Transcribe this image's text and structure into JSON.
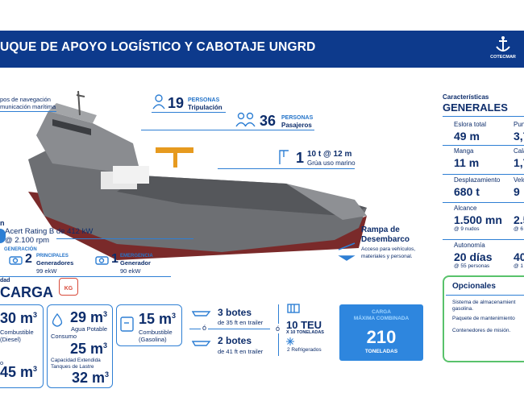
{
  "header": {
    "title": "UQUE DE APOYO LOGÍSTICO Y CABOTAJE UNGRD",
    "logo_text": "COTECMAR"
  },
  "callouts": {
    "navigation": [
      "pos de navegación",
      "municación marítima"
    ],
    "crew": {
      "number": "19",
      "unit": "PERSONAS",
      "label": "Tripulación"
    },
    "passengers": {
      "number": "36",
      "unit": "PERSONAS",
      "label": "Pasajeros"
    },
    "crane": {
      "value": "10 t @ 12 m",
      "number": "1",
      "label": "Grúa uso marino"
    },
    "ramp": {
      "title1": "Rampa de",
      "title2": "Desembarco",
      "desc1": "Acceso para vehículos,",
      "desc2": "materiales y personal."
    },
    "engine": {
      "line1": "Acert Rating B de 412 kW",
      "line2": "@ 2.100 rpm",
      "prefix": "n"
    },
    "generation": {
      "tag": "GENERACIÓN",
      "main_number": "2",
      "main_unit": "PRINCIPALES",
      "main_label": "Generadores",
      "main_power": "99 ekW",
      "emerg_number": "1",
      "emerg_unit": "EMERGENCIA",
      "emerg_label": "Generador",
      "emerg_power": "90 ekW"
    }
  },
  "cargo": {
    "capacity_word": "dad",
    "title": "CARGA",
    "kg_badge": "KG",
    "diesel": {
      "value": "30 m",
      "sup": "3",
      "label1": "Combustible",
      "label2": "(Diesel)"
    },
    "ballast_left": {
      "value": "45 m",
      "sup": "3",
      "prefix": "o"
    },
    "water": {
      "value": "29 m",
      "sup": "3",
      "label1": "Agua Potable",
      "label2": "Consumo"
    },
    "extended": {
      "value": "25 m",
      "sup": "3",
      "label1": "Capacidad Extendida",
      "label2": "Tanques de Lastre"
    },
    "ballast": {
      "value": "32 m",
      "sup": "3"
    },
    "gasoline": {
      "value": "15 m",
      "sup": "3",
      "label1": "Combustible",
      "label2": "(Gasolina)"
    },
    "or1": "ó",
    "boats1": {
      "title": "3 botes",
      "desc": "de 35 ft en trailer"
    },
    "boats2": {
      "title": "2 botes",
      "desc": "de 41 ft en trailer"
    },
    "or2": "ó",
    "teu": {
      "title": "10 TEU",
      "desc": "X 10 TONELADAS",
      "reefer": "2 Refrigerados"
    },
    "max": {
      "label1": "CARGA",
      "label2": "MÁXIMA COMBINADA",
      "value": "210",
      "unit": "TONELADAS"
    }
  },
  "general": {
    "subtitle": "Características",
    "title": "GENERALES",
    "specs": [
      {
        "label": "Eslora total",
        "value": "49 m",
        "note": ""
      },
      {
        "label": "Pun",
        "value": "3,7",
        "note": ""
      },
      {
        "label": "Manga",
        "value": "11 m",
        "note": ""
      },
      {
        "label": "Cala",
        "value": "1,7",
        "note": ""
      },
      {
        "label": "Desplazamiento",
        "value": "680 t",
        "note": ""
      },
      {
        "label": "Velo",
        "value": "9",
        "note": ""
      },
      {
        "label": "Alcance",
        "value": "1.500 mn",
        "note": "@ 9 nudos"
      },
      {
        "label": "",
        "value": "2.5",
        "note": "@ 6"
      },
      {
        "label": "Autonomía",
        "value": "20 días",
        "note": "@ 55 personas"
      },
      {
        "label": "",
        "value": "40",
        "note": "@ 1"
      }
    ]
  },
  "optional": {
    "title": "Opcionales",
    "items": [
      "Sistema de almacenamient",
      "gasolina.",
      "Paquete de mantenimiento",
      "Contenedores de misión."
    ]
  },
  "colors": {
    "navy": "#0d2d6b",
    "accent": "#2e7fd4",
    "banner": "#0d3a8c",
    "hull_red": "#7a2a2a",
    "hull_gray": "#6d6f73",
    "crane": "#e69a1f"
  }
}
